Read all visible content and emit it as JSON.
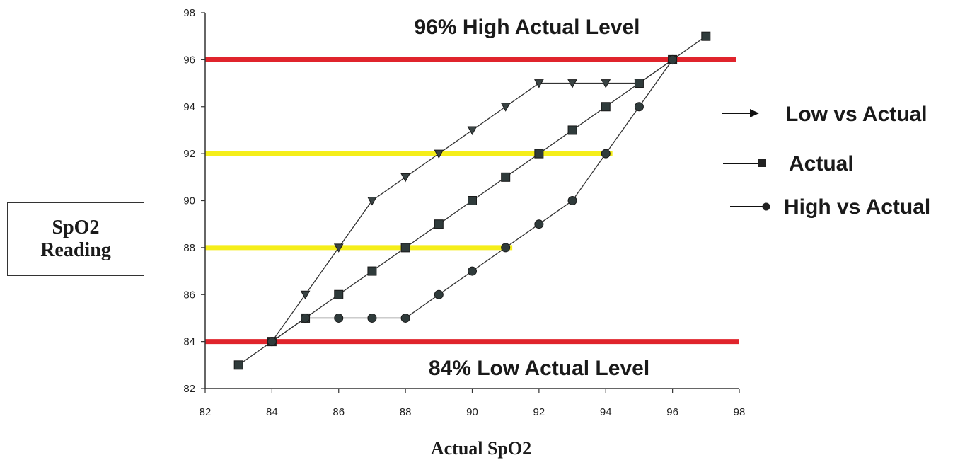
{
  "chart_data": {
    "type": "line",
    "xlabel": "Actual SpO2",
    "ylabel": "SpO2\nReading",
    "xlim": [
      82,
      98
    ],
    "ylim": [
      82,
      98
    ],
    "xticks": [
      82,
      84,
      86,
      88,
      90,
      92,
      94,
      96,
      98
    ],
    "yticks": [
      82,
      84,
      86,
      88,
      90,
      92,
      94,
      96,
      98
    ],
    "grid": false,
    "legend_position": "right",
    "series": [
      {
        "name": "Low vs Actual",
        "marker": "triangle-down",
        "points": [
          [
            84,
            84
          ],
          [
            85,
            86
          ],
          [
            86,
            88
          ],
          [
            87,
            90
          ],
          [
            88,
            91
          ],
          [
            89,
            92
          ],
          [
            90,
            93
          ],
          [
            91,
            94
          ],
          [
            92,
            95
          ],
          [
            93,
            95
          ],
          [
            94,
            95
          ],
          [
            95,
            95
          ],
          [
            96,
            96
          ]
        ]
      },
      {
        "name": "Actual",
        "marker": "square",
        "points": [
          [
            83,
            83
          ],
          [
            84,
            84
          ],
          [
            85,
            85
          ],
          [
            86,
            86
          ],
          [
            87,
            87
          ],
          [
            88,
            88
          ],
          [
            89,
            89
          ],
          [
            90,
            90
          ],
          [
            91,
            91
          ],
          [
            92,
            92
          ],
          [
            93,
            93
          ],
          [
            94,
            94
          ],
          [
            95,
            95
          ],
          [
            96,
            96
          ],
          [
            97,
            97
          ]
        ]
      },
      {
        "name": "High vs Actual",
        "marker": "circle",
        "points": [
          [
            84,
            84
          ],
          [
            85,
            85
          ],
          [
            86,
            85
          ],
          [
            87,
            85
          ],
          [
            88,
            85
          ],
          [
            89,
            86
          ],
          [
            90,
            87
          ],
          [
            91,
            88
          ],
          [
            92,
            89
          ],
          [
            93,
            90
          ],
          [
            94,
            92
          ],
          [
            95,
            94
          ],
          [
            96,
            96
          ]
        ]
      }
    ],
    "reference_lines": [
      {
        "y": 96,
        "color": "#e0242c",
        "x_from": 82,
        "x_to": 97.9
      },
      {
        "y": 84,
        "color": "#e0242c",
        "x_from": 82,
        "x_to": 98
      },
      {
        "y": 92,
        "color": "#f5ee1a",
        "x_from": 82,
        "x_to": 94.2
      },
      {
        "y": 88,
        "color": "#f5ee1a",
        "x_from": 82,
        "x_to": 91.2
      }
    ],
    "annotations": {
      "high": "96% High Actual Level",
      "low": "84% Low Actual Level"
    }
  }
}
